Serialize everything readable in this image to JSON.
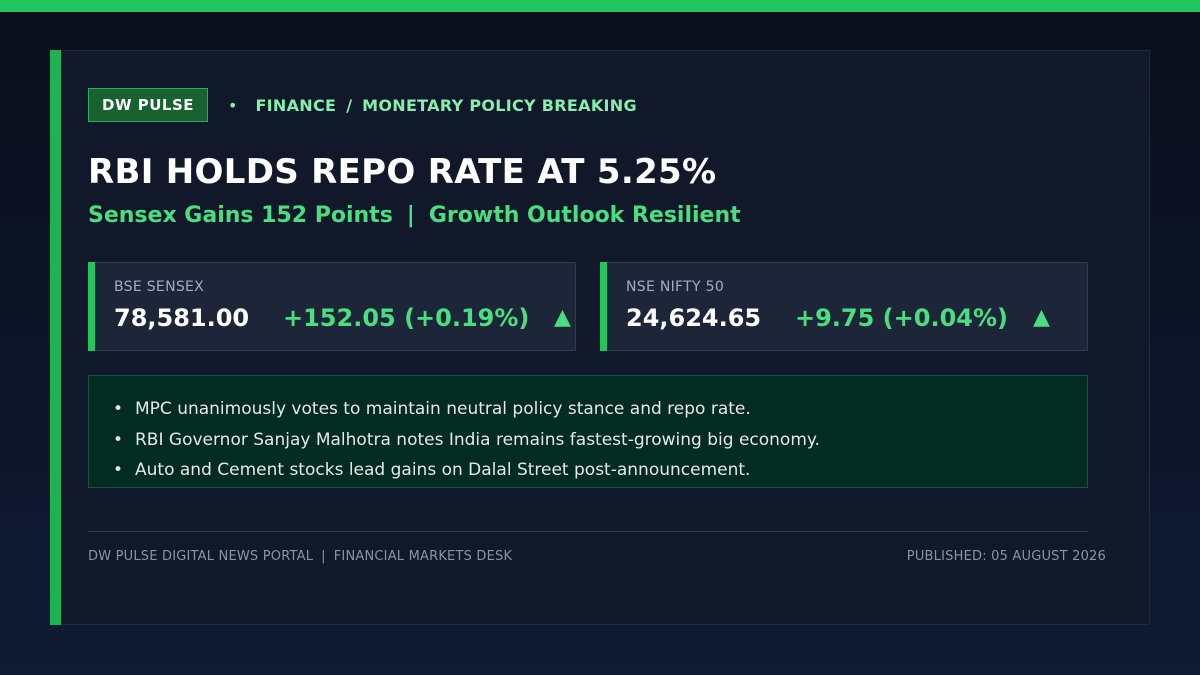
{
  "brand": {
    "badge": "DW PULSE"
  },
  "breadcrumb": {
    "section": "FINANCE",
    "separator": "/",
    "topic": "MONETARY POLICY BREAKING"
  },
  "headline": "RBI HOLDS REPO RATE AT 5.25%",
  "subheadline": {
    "part1": "Sensex Gains 152 Points",
    "separator": "|",
    "part2": "Growth Outlook Resilient"
  },
  "tickers": [
    {
      "label": "BSE SENSEX",
      "value": "78,581.00",
      "change": "+152.05 (+0.19%)",
      "arrow": "▲"
    },
    {
      "label": "NSE NIFTY 50",
      "value": "24,624.65",
      "change": "+9.75 (+0.04%)",
      "arrow": "▲"
    }
  ],
  "highlights": [
    "MPC unanimously votes to maintain neutral policy stance and repo rate.",
    "RBI Governor Sanjay Malhotra notes India remains fastest-growing big economy.",
    "Auto and Cement stocks lead gains on Dalal Street post-announcement."
  ],
  "bullet_symbol": "•",
  "footer": {
    "portal": "DW PULSE DIGITAL NEWS PORTAL",
    "separator": "|",
    "desk": "FINANCIAL MARKETS DESK",
    "published": "PUBLISHED: 05 AUGUST 2026"
  },
  "colors": {
    "accent": "#22c55e",
    "accent_light": "#4ade80",
    "background": "#0b0f1c",
    "card": "#101829"
  }
}
